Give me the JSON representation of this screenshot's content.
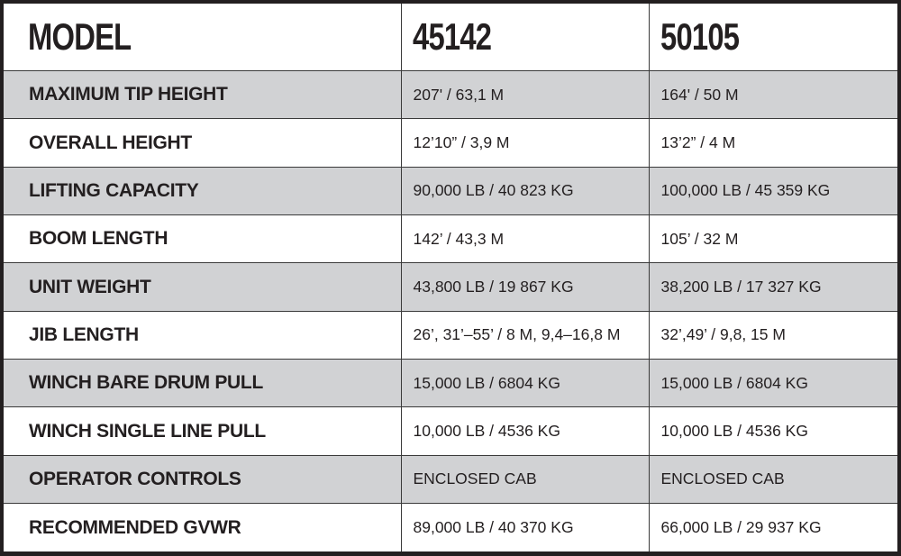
{
  "header": {
    "label": "MODEL",
    "models": [
      "45142",
      "50105"
    ]
  },
  "colors": {
    "row_alt": "#d1d2d4",
    "border": "#231f20",
    "text": "#231f20"
  },
  "rows": [
    {
      "label": "MAXIMUM TIP HEIGHT",
      "values": [
        "207' / 63,1 M",
        "164' / 50 M"
      ]
    },
    {
      "label": "OVERALL HEIGHT",
      "values": [
        "12’10” / 3,9 M",
        "13’2” / 4 M"
      ]
    },
    {
      "label": "LIFTING CAPACITY",
      "values": [
        "90,000 LB / 40 823 KG",
        "100,000 LB / 45 359 KG"
      ]
    },
    {
      "label": "BOOM LENGTH",
      "values": [
        "142’ / 43,3 M",
        "105’ / 32 M"
      ]
    },
    {
      "label": "UNIT WEIGHT",
      "values": [
        "43,800 LB / 19 867 KG",
        "38,200 LB / 17 327 KG"
      ]
    },
    {
      "label": "JIB LENGTH",
      "values": [
        "26’, 31’–55’ / 8 M, 9,4–16,8 M",
        "32’,49’ / 9,8, 15 M"
      ]
    },
    {
      "label": "WINCH BARE DRUM PULL",
      "values": [
        "15,000 LB / 6804 KG",
        "15,000 LB / 6804 KG"
      ]
    },
    {
      "label": "WINCH SINGLE LINE PULL",
      "values": [
        "10,000 LB / 4536 KG",
        "10,000 LB / 4536 KG"
      ]
    },
    {
      "label": "OPERATOR CONTROLS",
      "values": [
        "ENCLOSED CAB",
        "ENCLOSED CAB"
      ]
    },
    {
      "label": "RECOMMENDED GVWR",
      "values": [
        "89,000 LB / 40 370 KG",
        "66,000 LB / 29 937 KG"
      ]
    }
  ]
}
